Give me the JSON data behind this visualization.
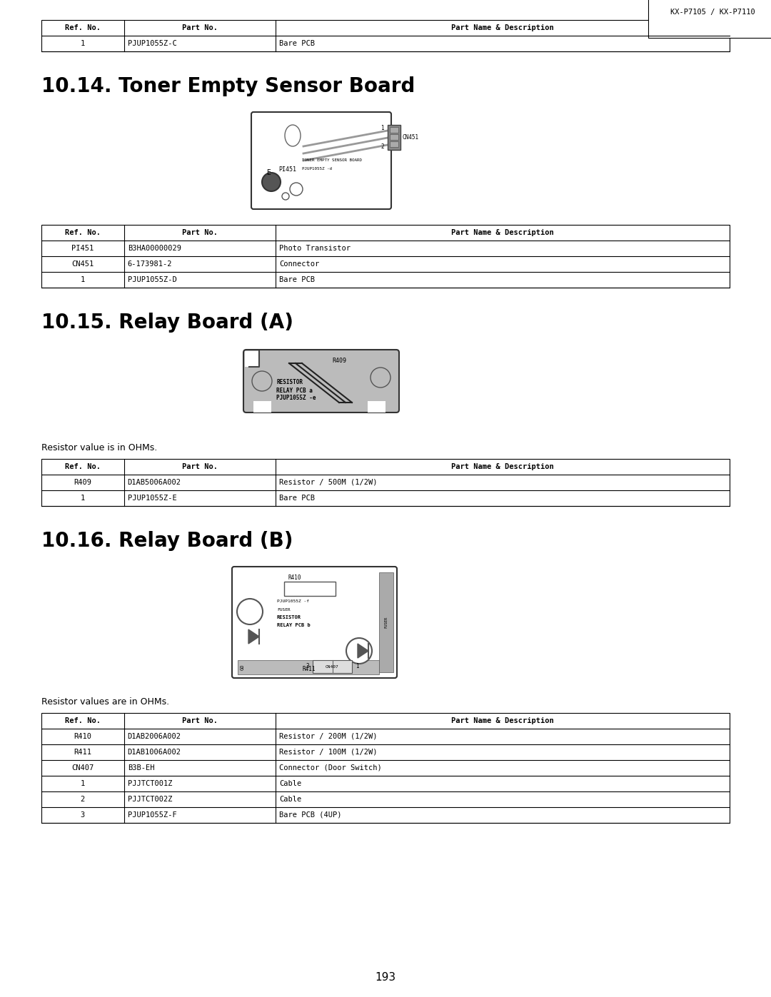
{
  "header_label": "KX-P7105 / KX-P7110",
  "page_number": "193",
  "bg_color": "#ffffff",
  "table0_header": [
    "Ref. No.",
    "Part No.",
    "Part Name & Description"
  ],
  "table0_rows": [
    [
      "1",
      "PJUP1055Z-C",
      "Bare PCB"
    ]
  ],
  "section1_title": "10.14. Toner Empty Sensor Board",
  "table1_header": [
    "Ref. No.",
    "Part No.",
    "Part Name & Description"
  ],
  "table1_rows": [
    [
      "PI451",
      "B3HA00000029",
      "Photo Transistor"
    ],
    [
      "CN451",
      "6-173981-2",
      "Connector"
    ],
    [
      "1",
      "PJUP1055Z-D",
      "Bare PCB"
    ]
  ],
  "section2_title": "10.15. Relay Board (A)",
  "section2_note": "Resistor value is in OHMs.",
  "table2_header": [
    "Ref. No.",
    "Part No.",
    "Part Name & Description"
  ],
  "table2_rows": [
    [
      "R409",
      "D1AB5006A002",
      "Resistor / 500M (1/2W)"
    ],
    [
      "1",
      "PJUP1055Z-E",
      "Bare PCB"
    ]
  ],
  "section3_title": "10.16. Relay Board (B)",
  "section3_note": "Resistor values are in OHMs.",
  "table3_header": [
    "Ref. No.",
    "Part No.",
    "Part Name & Description"
  ],
  "table3_rows": [
    [
      "R410",
      "D1AB2006A002",
      "Resistor / 200M (1/2W)"
    ],
    [
      "R411",
      "D1AB1006A002",
      "Resistor / 100M (1/2W)"
    ],
    [
      "CN407",
      "B3B-EH",
      "Connector (Door Switch)"
    ],
    [
      "1",
      "PJJTCT001Z",
      "Cable"
    ],
    [
      "2",
      "PJJTCT002Z",
      "Cable"
    ],
    [
      "3",
      "PJUP1055Z-F",
      "Bare PCB (4UP)"
    ]
  ]
}
